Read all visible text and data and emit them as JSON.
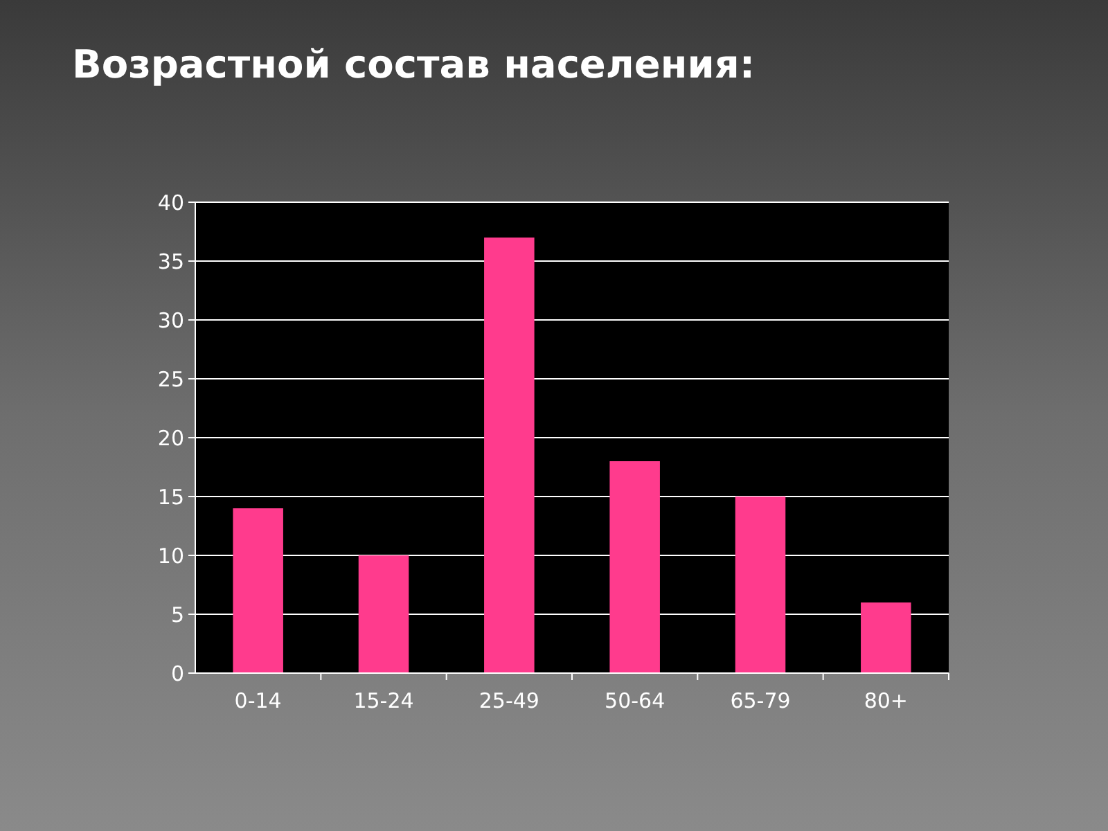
{
  "chart_data": {
    "type": "bar",
    "title": "Возрастной состав населения:",
    "categories": [
      "0-14",
      "15-24",
      "25-49",
      "50-64",
      "65-79",
      "80+"
    ],
    "values": [
      14,
      10,
      37,
      18,
      15,
      6
    ],
    "color": "#ff3b8d",
    "ylim": [
      0,
      40
    ],
    "yticks": [
      0,
      5,
      10,
      15,
      20,
      25,
      30,
      35,
      40
    ],
    "grid": "y"
  }
}
